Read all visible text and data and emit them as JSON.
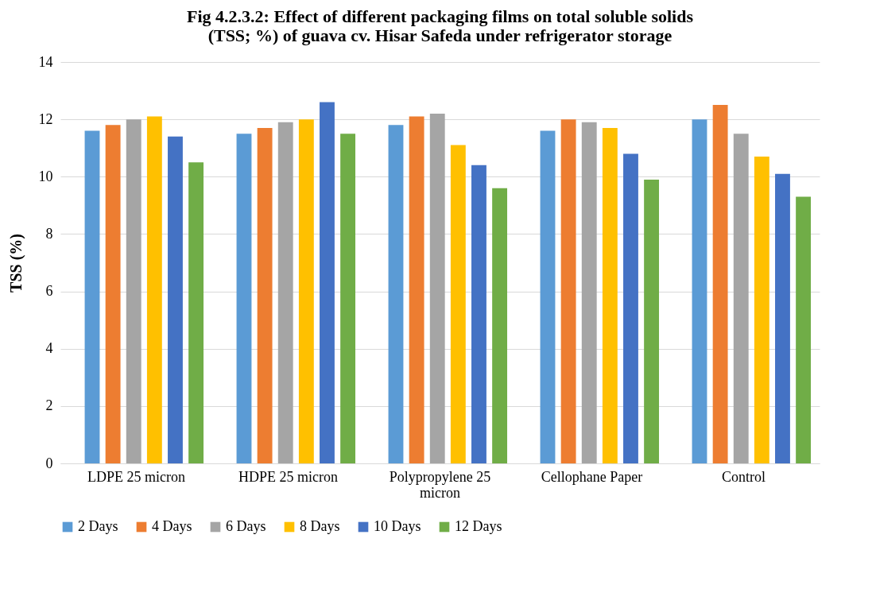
{
  "chart_data": {
    "type": "bar",
    "title": [
      "Fig 4.2.3.2: Effect of different packaging films on total soluble solids",
      "(TSS; %) of guava cv. Hisar Safeda under refrigerator storage"
    ],
    "ylabel": "TSS (%)",
    "categories": [
      "LDPE 25 micron",
      "HDPE 25 micron",
      "Polypropylene 25 micron",
      "Cellophane Paper",
      "Control"
    ],
    "series": [
      {
        "name": "2 Days",
        "color": "#5b9bd5",
        "values": [
          11.6,
          11.5,
          11.8,
          11.6,
          12.0
        ]
      },
      {
        "name": "4 Days",
        "color": "#ed7d31",
        "values": [
          11.8,
          11.7,
          12.1,
          12.0,
          12.5
        ]
      },
      {
        "name": "6 Days",
        "color": "#a5a5a5",
        "values": [
          12.0,
          11.9,
          12.2,
          11.9,
          11.5
        ]
      },
      {
        "name": "8 Days",
        "color": "#ffc000",
        "values": [
          12.1,
          12.0,
          11.1,
          11.7,
          10.7
        ]
      },
      {
        "name": "10 Days",
        "color": "#4472c4",
        "values": [
          11.4,
          12.6,
          10.4,
          10.8,
          10.1
        ]
      },
      {
        "name": "12 Days",
        "color": "#70ad47",
        "values": [
          10.5,
          11.5,
          9.6,
          9.9,
          9.3
        ]
      }
    ],
    "ylim": [
      0,
      14
    ],
    "yticks": [
      0,
      2,
      4,
      6,
      8,
      10,
      12,
      14
    ],
    "grid": "y",
    "legend": "bottom"
  }
}
